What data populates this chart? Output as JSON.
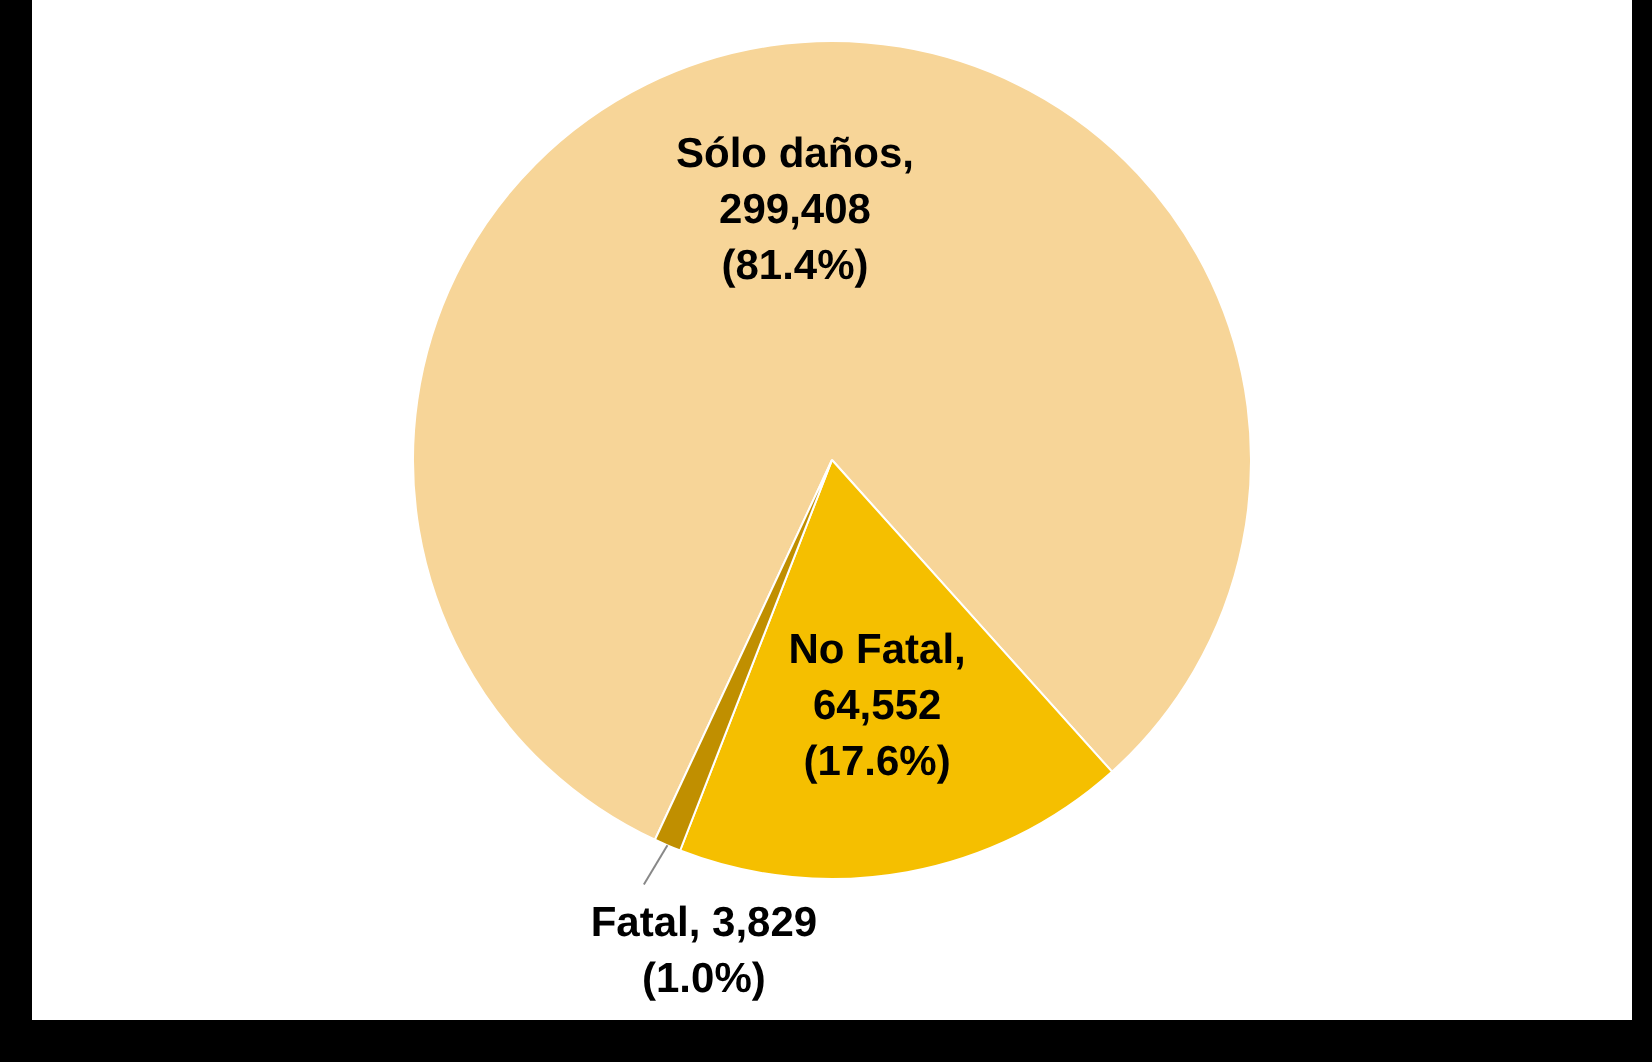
{
  "chart_data": {
    "type": "pie",
    "categories": [
      "Sólo daños",
      "No Fatal",
      "Fatal"
    ],
    "values": [
      299408,
      64552,
      3829
    ],
    "colors": [
      "#f7d598",
      "#f5bf00",
      "#c08f00"
    ],
    "value_labels": [
      ",\n299,408\n(81.4%)",
      ",\n64,552\n(17.6%)",
      ", 3,829\n(1.0%)"
    ]
  }
}
